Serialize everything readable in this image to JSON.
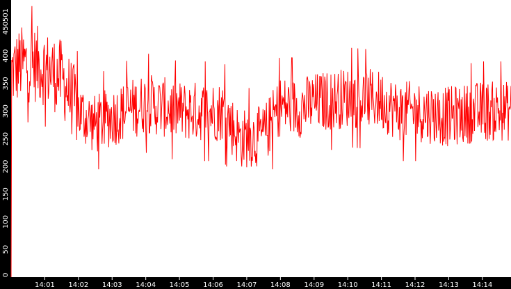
{
  "chart_data": {
    "type": "line",
    "title": "",
    "xlabel": "",
    "ylabel": "",
    "background": "#000000",
    "plot_background": "#ffffff",
    "line_color": "#ff0000",
    "grid": false,
    "ylim": [
      0,
      501
    ],
    "y_ticks": [
      0,
      50,
      100,
      150,
      200,
      250,
      300,
      350,
      400,
      450,
      501
    ],
    "x_range_minutes": [
      0,
      14.85
    ],
    "x_ticks": [
      {
        "label": "14:01",
        "m": 1
      },
      {
        "label": "14:02",
        "m": 2
      },
      {
        "label": "14:03",
        "m": 3
      },
      {
        "label": "14:04",
        "m": 4
      },
      {
        "label": "14:05",
        "m": 5
      },
      {
        "label": "14:06",
        "m": 6
      },
      {
        "label": "14:07",
        "m": 7
      },
      {
        "label": "14:08",
        "m": 8
      },
      {
        "label": "14:09",
        "m": 9
      },
      {
        "label": "14:10",
        "m": 10
      },
      {
        "label": "14:11",
        "m": 11
      },
      {
        "label": "14:12",
        "m": 12
      },
      {
        "label": "14:13",
        "m": 13
      },
      {
        "label": "14:14",
        "m": 14
      }
    ],
    "series": [
      {
        "points_per_minute": 60,
        "level_profile_minutes": [
          0,
          0.3,
          0.8,
          1.5,
          2.0,
          2.5,
          3.0,
          4.0,
          5.0,
          5.5,
          6.3,
          6.8,
          7.5,
          8.0,
          8.5,
          9.0,
          10.0,
          11.0,
          11.5,
          12.0,
          13.0,
          14.0,
          14.85
        ],
        "level_profile_values": [
          370,
          385,
          385,
          360,
          300,
          275,
          290,
          315,
          300,
          300,
          300,
          250,
          255,
          310,
          305,
          315,
          325,
          320,
          300,
          300,
          290,
          300,
          300
        ],
        "min": 195,
        "max": 501
      }
    ]
  }
}
